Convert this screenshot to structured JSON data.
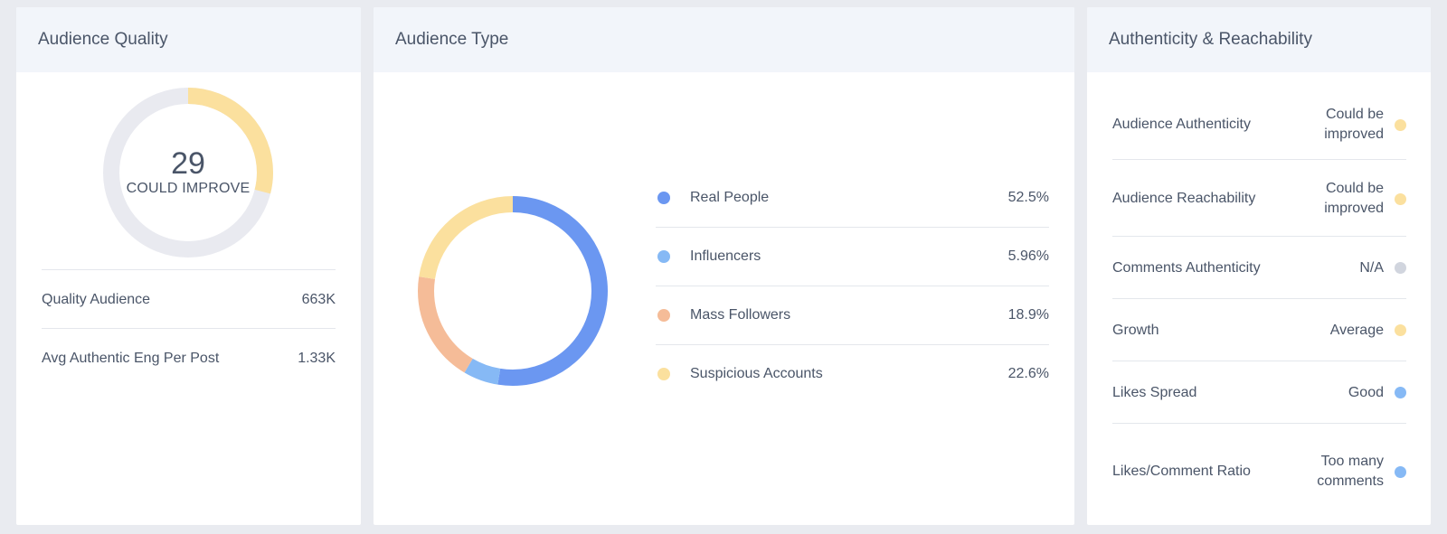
{
  "colors": {
    "blue": "#6b97f1",
    "light_blue": "#86b9f5",
    "peach": "#f5bc98",
    "yellow": "#fbe09e",
    "gray": "#d1d5de",
    "track": "#e9eaf0"
  },
  "quality": {
    "title": "Audience Quality",
    "score": "29",
    "score_label": "COULD IMPROVE",
    "score_fraction": 0.29,
    "stats": [
      {
        "label": "Quality Audience",
        "value": "663K"
      },
      {
        "label": "Avg Authentic Eng Per Post",
        "value": "1.33K"
      }
    ]
  },
  "audience_type": {
    "title": "Audience Type",
    "items": [
      {
        "label": "Real People",
        "value": "52.5%",
        "percent": 52.5,
        "color": "#6b97f1"
      },
      {
        "label": "Influencers",
        "value": "5.96%",
        "percent": 5.96,
        "color": "#86b9f5"
      },
      {
        "label": "Mass Followers",
        "value": "18.9%",
        "percent": 18.9,
        "color": "#f5bc98"
      },
      {
        "label": "Suspicious Accounts",
        "value": "22.6%",
        "percent": 22.6,
        "color": "#fbe09e"
      }
    ]
  },
  "authenticity": {
    "title": "Authenticity & Reachability",
    "items": [
      {
        "label": "Audience Authenticity",
        "status_line1": "Could be",
        "status_line2": "improved",
        "dot_color": "#fbe09e"
      },
      {
        "label": "Audience Reachability",
        "status_line1": "Could be",
        "status_line2": "improved",
        "dot_color": "#fbe09e"
      },
      {
        "label": "Comments Authenticity",
        "status_line1": "N/A",
        "status_line2": "",
        "dot_color": "#d1d5de"
      },
      {
        "label": "Growth",
        "status_line1": "Average",
        "status_line2": "",
        "dot_color": "#fbe09e"
      },
      {
        "label": "Likes Spread",
        "status_line1": "Good",
        "status_line2": "",
        "dot_color": "#86b9f5"
      },
      {
        "label": "Likes/Comment Ratio",
        "status_line1": "Too many",
        "status_line2": "comments",
        "dot_color": "#86b9f5"
      }
    ]
  }
}
